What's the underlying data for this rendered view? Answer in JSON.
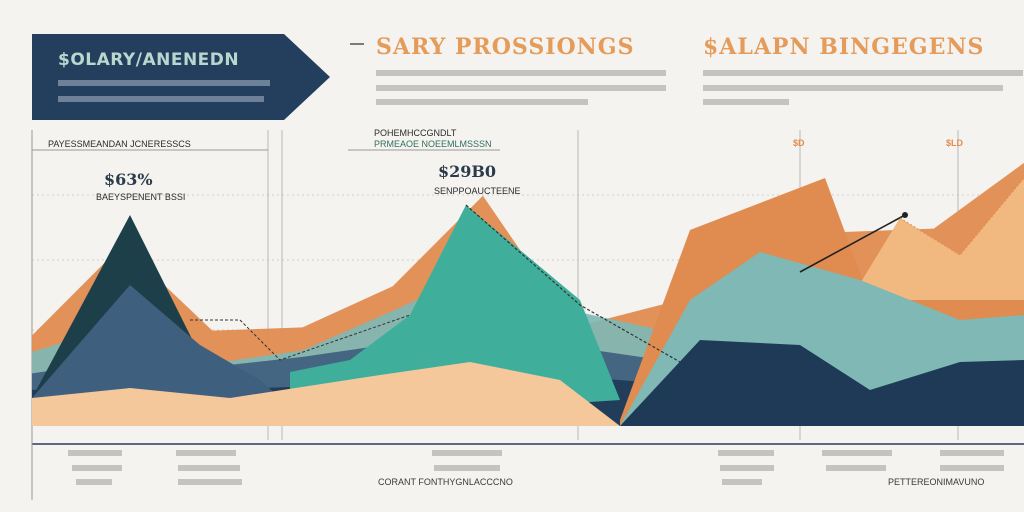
{
  "banner": {
    "title": "$OLARY/ANENEDN"
  },
  "headings": [
    {
      "text": "SARY PROSSIONGS"
    },
    {
      "text": "$ALAPN BINGEGENS"
    }
  ],
  "labels": {
    "panel_top_left": "PAYESSMEANDAN JCNERESSCS",
    "panel_top_mid_1": "POHEMHCCGNDLT",
    "panel_top_mid_2": "PRMEAOE NOEEMLMSSSN",
    "value_left": "$63%",
    "value_left_sub": "BAEYSPENENT BSSI",
    "value_mid": "$29B0",
    "value_mid_sub": "SENPPOAUCTEENE",
    "value_right_1": "$D",
    "value_right_2": "$LD",
    "footer_mid": "CORANT FONTHYGNLACCCNO",
    "footer_right": "PETTEREONIMAVUNO"
  },
  "colors": {
    "navy": "#1f3a56",
    "dark_teal": "#1c3f4a",
    "slate_blue": "#3f5f7f",
    "teal": "#3fae9a",
    "light_teal": "#7fb8b4",
    "orange": "#e08c50",
    "peach": "#f1b87f",
    "sand": "#f4c89a"
  },
  "chart_data": {
    "type": "area",
    "title": "SARY PROSSIONGS",
    "series": [
      {
        "values": [
          22,
          23,
          22,
          24,
          30,
          34,
          30,
          26,
          24,
          26,
          28,
          30
        ]
      },
      {
        "values": [
          32,
          40,
          36,
          42,
          50,
          62,
          48,
          40,
          52,
          56,
          60,
          62
        ]
      },
      {
        "values": [
          45,
          62,
          38,
          46,
          70,
          95,
          70,
          58,
          80,
          88,
          82,
          85
        ]
      },
      {
        "values": [
          55,
          110,
          58,
          60,
          85,
          140,
          60,
          74,
          128,
          118,
          120,
          160
        ]
      }
    ],
    "ylim": [
      0,
      180
    ],
    "grid": true
  }
}
